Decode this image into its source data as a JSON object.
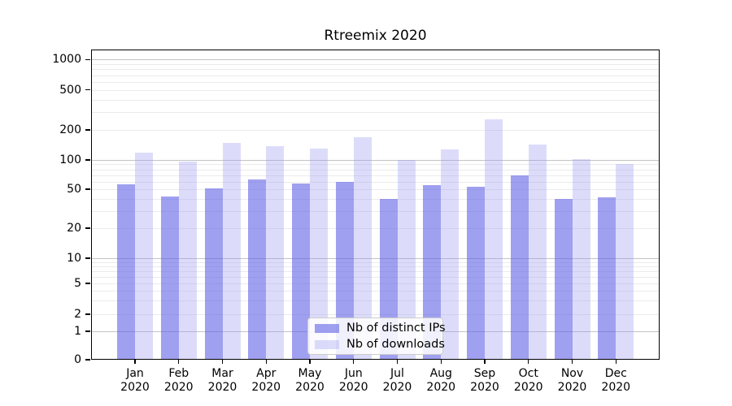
{
  "chart_data": {
    "type": "bar",
    "title": "Rtreemix 2020",
    "year": "2020",
    "categories": [
      "Jan",
      "Feb",
      "Mar",
      "Apr",
      "May",
      "Jun",
      "Jul",
      "Aug",
      "Sep",
      "Oct",
      "Nov",
      "Dec"
    ],
    "series": [
      {
        "name": "Nb of distinct IPs",
        "color": "rgba(97,97,230,0.6)",
        "values": [
          56,
          42,
          51,
          63,
          57,
          60,
          40,
          55,
          53,
          70,
          40,
          41
        ]
      },
      {
        "name": "Nb of downloads",
        "color": "rgba(155,155,240,0.35)",
        "values": [
          118,
          97,
          147,
          137,
          129,
          168,
          100,
          128,
          253,
          143,
          101,
          90
        ]
      }
    ],
    "xlabel": "",
    "ylabel": "",
    "yscale": "symlog",
    "yticks": [
      0,
      1,
      2,
      5,
      10,
      20,
      50,
      100,
      200,
      500,
      1000
    ],
    "ylim": [
      0,
      1270
    ],
    "grid": true,
    "legend_position": "lower center",
    "colors": {
      "grid_major": "#c3c3c3",
      "grid_minor": "#ebebeb",
      "spine": "#000000",
      "background": "#ffffff"
    }
  }
}
